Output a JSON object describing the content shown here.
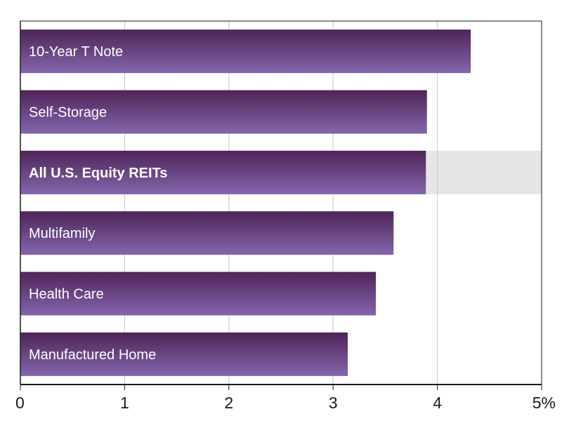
{
  "chart_data": {
    "type": "bar",
    "orientation": "horizontal",
    "title": "",
    "xlabel": "",
    "ylabel": "",
    "categories": [
      "10-Year T Note",
      "Self-Storage",
      "All U.S. Equity REITs",
      "Multifamily",
      "Health Care",
      "Manufactured Home"
    ],
    "values": [
      4.32,
      3.9,
      3.89,
      3.58,
      3.41,
      3.14
    ],
    "highlight": "All U.S. Equity REITs",
    "xlim": [
      0,
      5
    ],
    "x_ticks": [
      0,
      1,
      2,
      3,
      4,
      5
    ],
    "x_tick_labels": [
      "0",
      "1",
      "2",
      "3",
      "4",
      "5%"
    ],
    "grid": "vertical",
    "colors": {
      "bar_top": "#4e2458",
      "bar_bottom": "#8466ad",
      "highlight_band": "#e6e6e8",
      "grid": "#c8c8c8",
      "axis": "#1a1a1a"
    }
  }
}
